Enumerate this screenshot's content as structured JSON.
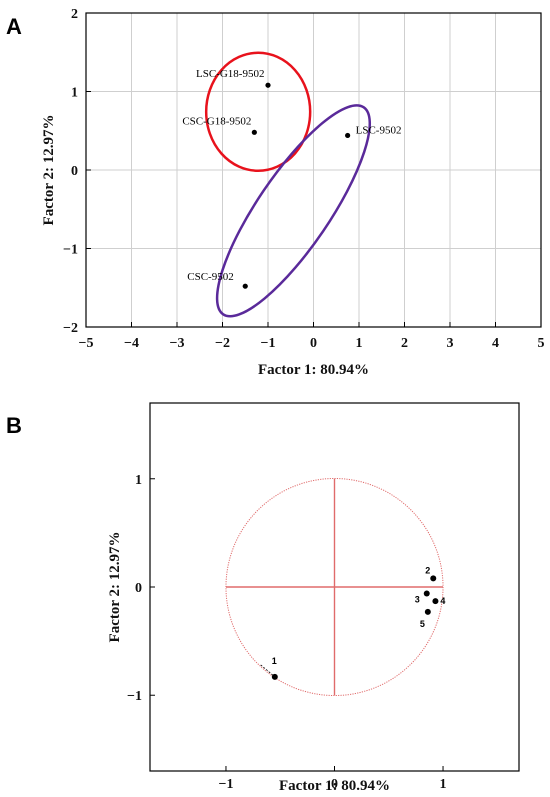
{
  "panels": [
    {
      "letter": "A"
    },
    {
      "letter": "B"
    }
  ],
  "chart_data": [
    {
      "type": "scatter",
      "xlabel": "Factor 1: 80.94%",
      "ylabel": "Factor 2: 12.97%",
      "xlim": [
        -5,
        5
      ],
      "ylim": [
        -2,
        2
      ],
      "xticks": [
        -5,
        -4,
        -3,
        -2,
        -1,
        0,
        1,
        2,
        3,
        4,
        5
      ],
      "yticks": [
        2,
        1,
        0,
        -1,
        -2
      ],
      "grid": true,
      "points": [
        {
          "label": "LSC-G18-9502",
          "x": -1.0,
          "y": 1.08
        },
        {
          "label": "CSC-G18-9502",
          "x": -1.3,
          "y": 0.48
        },
        {
          "label": "LSC-9502",
          "x": 0.75,
          "y": 0.44
        },
        {
          "label": "CSC-9502",
          "x": -1.5,
          "y": -1.48
        }
      ],
      "groups": [
        {
          "members": [
            "LSC-G18-9502",
            "CSC-G18-9502"
          ],
          "color": "#e8121c"
        },
        {
          "members": [
            "LSC-9502",
            "CSC-9502"
          ],
          "color": "#5a2a9a"
        }
      ]
    },
    {
      "type": "scatter",
      "xlabel": "Factor 1: 80.94%",
      "ylabel": "Factor 2: 12.97%",
      "xlim": [
        -1.7,
        1.7
      ],
      "ylim": [
        -1.7,
        1.7
      ],
      "xticks": [
        -1,
        0,
        1
      ],
      "yticks": [
        1,
        0,
        -1
      ],
      "grid": false,
      "unit_circle": true,
      "reference_color": "#e06b6b",
      "points": [
        {
          "label": "1",
          "x": -0.55,
          "y": -0.83
        },
        {
          "label": "2",
          "x": 0.91,
          "y": 0.08
        },
        {
          "label": "3",
          "x": 0.85,
          "y": -0.06
        },
        {
          "label": "4",
          "x": 0.93,
          "y": -0.13
        },
        {
          "label": "5",
          "x": 0.86,
          "y": -0.23
        }
      ]
    }
  ]
}
